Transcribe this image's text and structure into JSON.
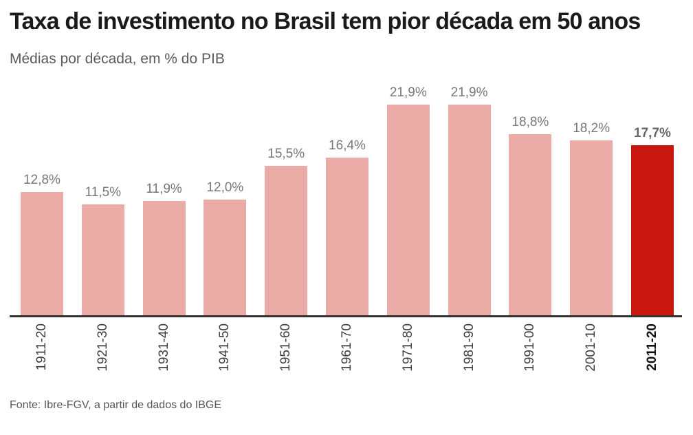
{
  "header": {
    "title": "Taxa de investimento no Brasil tem pior década em 50 anos",
    "subtitle": "Médias por década, em % do PIB"
  },
  "chart_data": {
    "type": "bar",
    "title": "Taxa de investimento no Brasil tem pior década em 50 anos",
    "subtitle": "Médias por década, em % do PIB",
    "categories": [
      "1911-20",
      "1921-30",
      "1931-40",
      "1941-50",
      "1951-60",
      "1961-70",
      "1971-80",
      "1981-90",
      "1991-00",
      "2001-10",
      "2011-20"
    ],
    "values": [
      12.8,
      11.5,
      11.9,
      12.0,
      15.5,
      16.4,
      21.9,
      21.9,
      18.8,
      18.2,
      17.7
    ],
    "value_labels": [
      "12,8%",
      "11,5%",
      "11,9%",
      "12,0%",
      "15,5%",
      "16,4%",
      "21,9%",
      "21,9%",
      "18,8%",
      "18,2%",
      "17,7%"
    ],
    "xlabel": "",
    "ylabel": "% do PIB",
    "ylim": [
      0,
      24.9
    ],
    "grid": false,
    "legend": "none",
    "highlight_index": 10,
    "bar_color": "#ebaca8",
    "highlight_color": "#c8170e",
    "axis_color": "#333333"
  },
  "footer": {
    "source": "Fonte: Ibre-FGV, a partir de dados do IBGE"
  }
}
